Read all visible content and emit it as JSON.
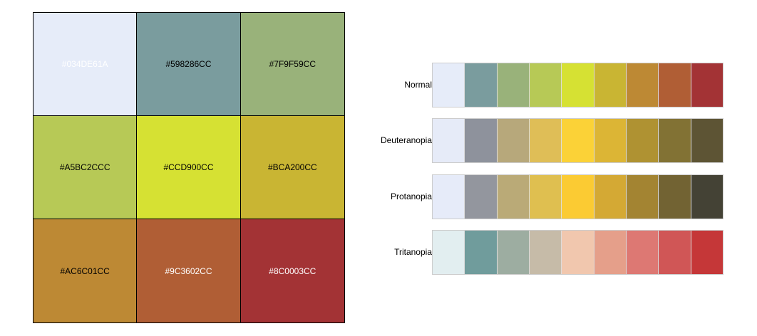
{
  "swatches": [
    {
      "label": "#034DE61A",
      "color": "#E6ECF9",
      "text_color": "#FFFFFF"
    },
    {
      "label": "#598286CC",
      "color": "#7A9C9E",
      "text_color": "#000000"
    },
    {
      "label": "#7F9F59CC",
      "color": "#99B27A",
      "text_color": "#000000"
    },
    {
      "label": "#A5BC2CCC",
      "color": "#B7C956",
      "text_color": "#000000"
    },
    {
      "label": "#CCD900CC",
      "color": "#D6E133",
      "text_color": "#000000"
    },
    {
      "label": "#BCA200CC",
      "color": "#C9B533",
      "text_color": "#000000"
    },
    {
      "label": "#AC6C01CC",
      "color": "#BD8934",
      "text_color": "#000000"
    },
    {
      "label": "#9C3602CC",
      "color": "#B05E35",
      "text_color": "#FFFFFF"
    },
    {
      "label": "#8C0003CC",
      "color": "#A33335",
      "text_color": "#FFFFFF"
    }
  ],
  "simulations": [
    {
      "name": "Normal",
      "colors": [
        "#E6ECF9",
        "#7A9C9E",
        "#99B27A",
        "#B7C956",
        "#D6E133",
        "#C9B533",
        "#BD8934",
        "#B05E35",
        "#A33335"
      ]
    },
    {
      "name": "Deuteranopia",
      "colors": [
        "#E6EBF8",
        "#8E929C",
        "#B7A87B",
        "#DFBE57",
        "#FBD237",
        "#DCB535",
        "#AF9232",
        "#827234",
        "#5D5434"
      ]
    },
    {
      "name": "Protanopia",
      "colors": [
        "#E6EBF9",
        "#93969E",
        "#BAAA77",
        "#DFBF50",
        "#FBCB33",
        "#D4A934",
        "#A38432",
        "#726333",
        "#444235"
      ]
    },
    {
      "name": "Tritanopia",
      "colors": [
        "#E2EEF0",
        "#709C9C",
        "#9DADA1",
        "#C6BBA8",
        "#F1C7AE",
        "#E59F8A",
        "#DD7873",
        "#D05656",
        "#C53738"
      ]
    }
  ]
}
